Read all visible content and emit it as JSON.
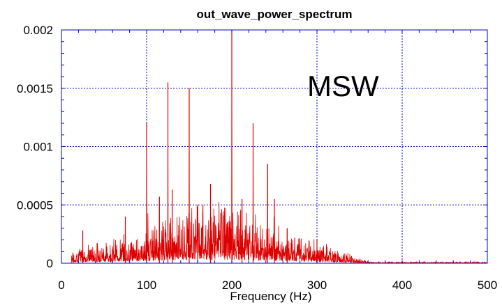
{
  "chart_data": {
    "type": "line",
    "title": "out_wave_power_spectrum",
    "xlabel": "Frequency (Hz)",
    "ylabel": "",
    "xlim": [
      0,
      500
    ],
    "ylim": [
      0,
      0.002
    ],
    "x_ticks": [
      0,
      100,
      200,
      300,
      400,
      500
    ],
    "y_ticks": [
      0,
      0.0005,
      0.001,
      0.0015,
      0.002
    ],
    "x_tick_labels": [
      "0",
      "100",
      "200",
      "300",
      "400",
      "500"
    ],
    "y_tick_labels": [
      "0",
      "0.0005",
      "0.001",
      "0.0015",
      "0.002"
    ],
    "grid": true,
    "annotation": "MSW",
    "series": [
      {
        "color": "#dd0000",
        "peaks": [
          {
            "x": 25,
            "y": 0.00028
          },
          {
            "x": 75,
            "y": 0.0004
          },
          {
            "x": 100,
            "y": 0.0012
          },
          {
            "x": 115,
            "y": 0.00057
          },
          {
            "x": 125,
            "y": 0.00155
          },
          {
            "x": 130,
            "y": 0.00063
          },
          {
            "x": 150,
            "y": 0.0015
          },
          {
            "x": 160,
            "y": 0.0005
          },
          {
            "x": 175,
            "y": 0.00068
          },
          {
            "x": 200,
            "y": 0.002
          },
          {
            "x": 212,
            "y": 0.00055
          },
          {
            "x": 225,
            "y": 0.0012
          },
          {
            "x": 242,
            "y": 0.00085
          },
          {
            "x": 250,
            "y": 0.00055
          },
          {
            "x": 265,
            "y": 0.0003
          },
          {
            "x": 300,
            "y": 0.0002
          }
        ]
      }
    ]
  }
}
